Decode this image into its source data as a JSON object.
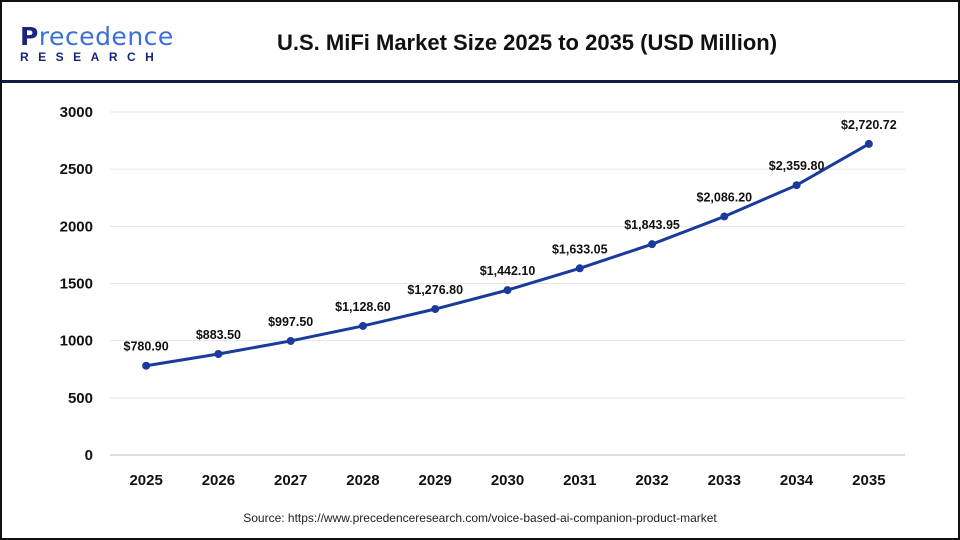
{
  "logo": {
    "line1a": "P",
    "line1b": "recedence",
    "line2": "RESEARCH"
  },
  "title": "U.S. MiFi Market Size 2025 to 2035 (USD Million)",
  "source": "Source: https://www.precedenceresearch.com/voice-based-ai-companion-product-market",
  "chart_data": {
    "type": "line",
    "title": "U.S. MiFi Market Size 2025 to 2035 (USD Million)",
    "categories": [
      "2025",
      "2026",
      "2027",
      "2028",
      "2029",
      "2030",
      "2031",
      "2032",
      "2033",
      "2034",
      "2035"
    ],
    "values": [
      780.9,
      883.5,
      997.5,
      1128.6,
      1276.8,
      1442.1,
      1633.05,
      1843.95,
      2086.2,
      2359.8,
      2720.72
    ],
    "data_labels": [
      "$780.90",
      "$883.50",
      "$997.50",
      "$1,128.60",
      "$1,276.80",
      "$1,442.10",
      "$1,633.05",
      "$1,843.95",
      "$2,086.20",
      "$2,359.80",
      "$2,720.72"
    ],
    "yticks": [
      "0",
      "500",
      "1000",
      "1500",
      "2000",
      "2500",
      "3000"
    ],
    "ylim": [
      0,
      3000
    ],
    "grid": "horizontal",
    "color": "#1a3a9c"
  }
}
